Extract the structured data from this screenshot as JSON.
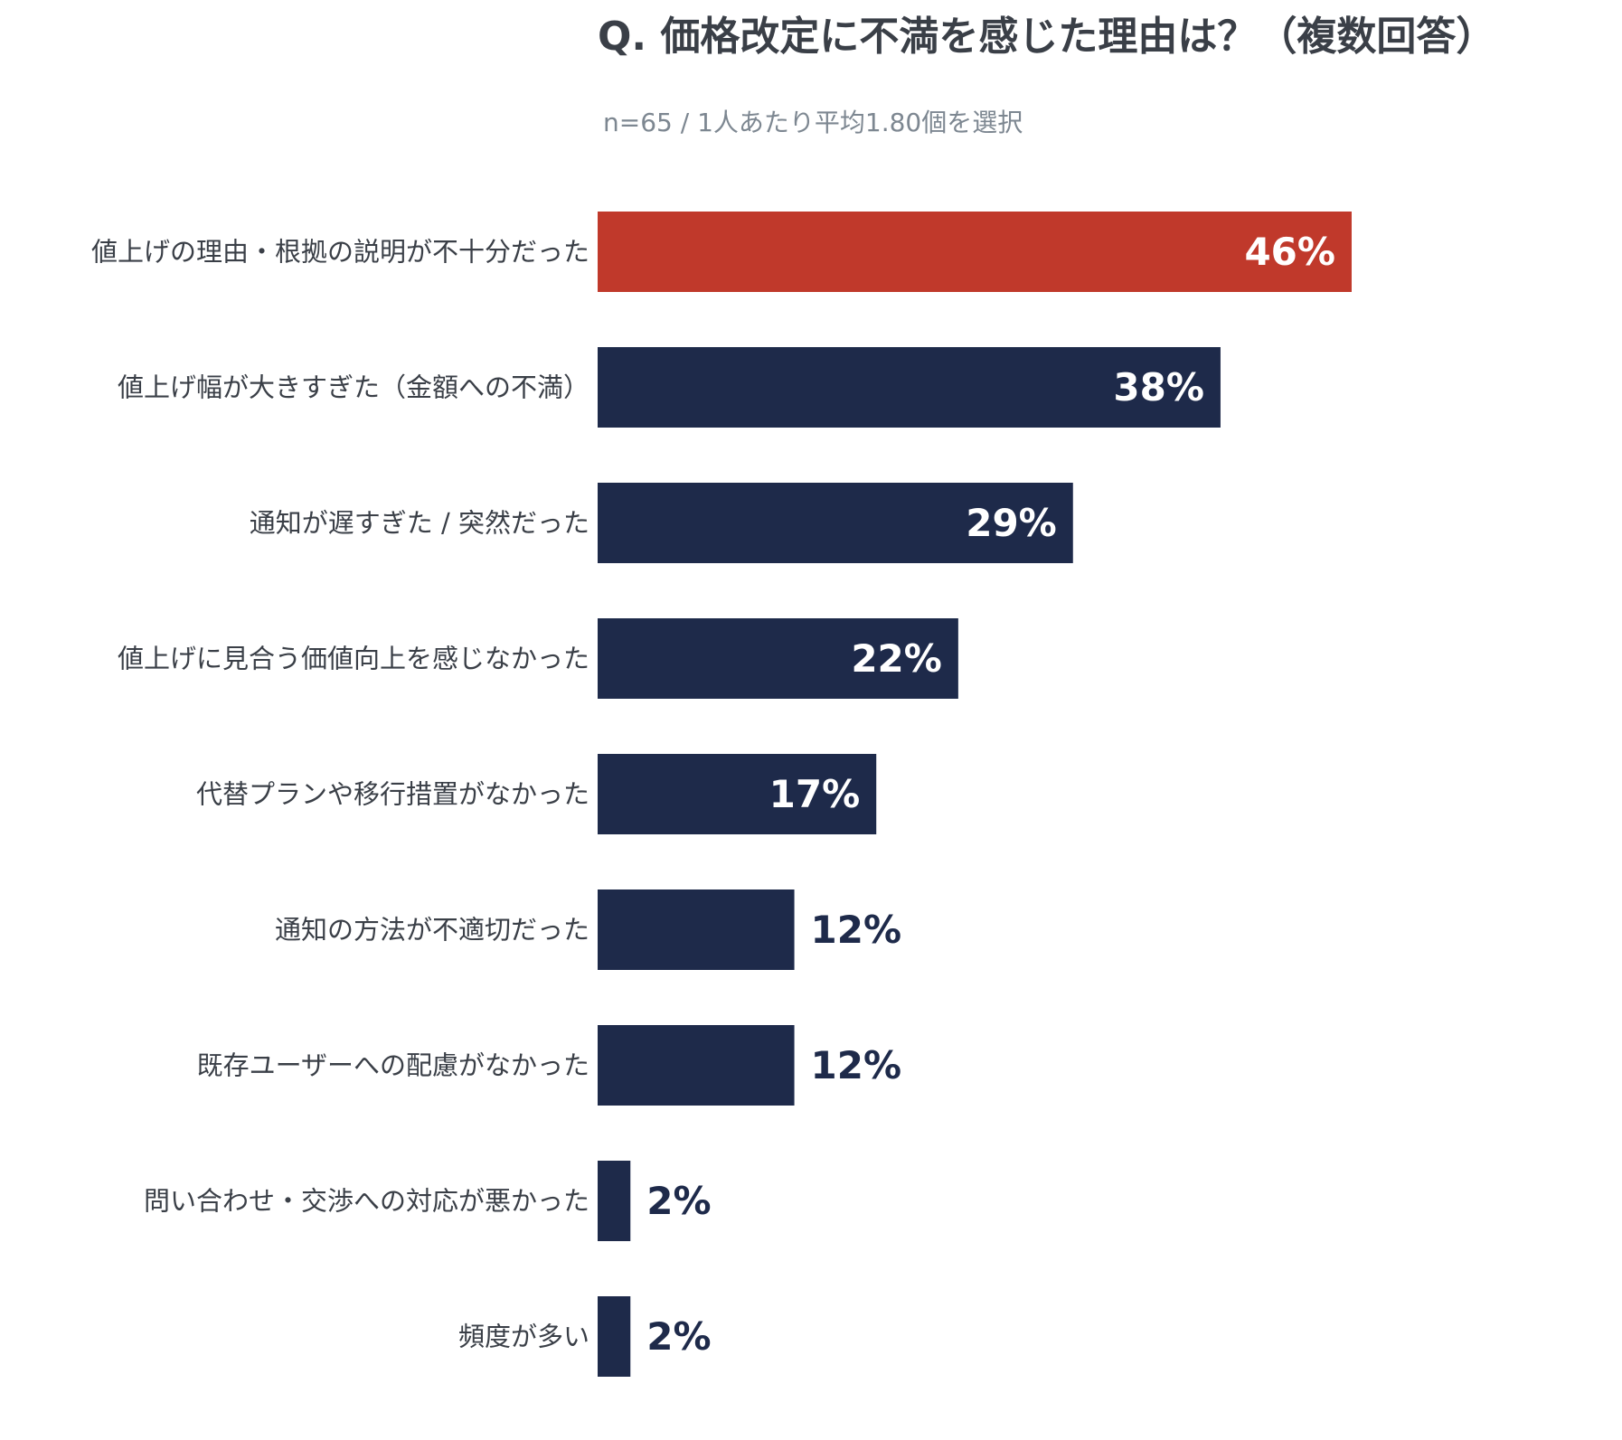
{
  "chart_data": {
    "type": "bar",
    "orientation": "horizontal",
    "title": "Q. 価格改定に不満を感じた理由は？（複数回答）",
    "subtitle": "n=65 / 1人あたり平均1.80個を選択",
    "categories": [
      "値上げの理由・根拠の説明が不十分だった",
      "値上げ幅が大きすぎた（金額への不満）",
      "通知が遅すぎた / 突然だった",
      "値上げに見合う価値向上を感じなかった",
      "代替プランや移行措置がなかった",
      "通知の方法が不適切だった",
      "既存ユーザーへの配慮がなかった",
      "問い合わせ・交渉への対応が悪かった",
      "頻度が多い"
    ],
    "values": [
      46,
      38,
      29,
      22,
      17,
      12,
      12,
      2,
      2
    ],
    "value_labels": [
      "46%",
      "38%",
      "29%",
      "22%",
      "17%",
      "12%",
      "12%",
      "2%",
      "2%"
    ],
    "unit": "%",
    "highlight_index": 0,
    "xlim": [
      0,
      60
    ],
    "grid": false,
    "legend": "none",
    "colors": {
      "highlight": "#c0392b",
      "bar": "#1e2a4a",
      "label_inside": "#ffffff",
      "label_outside": "#1e2a4a",
      "category_text": "#3a3f47",
      "title": "#3a3f47",
      "subtitle": "#7d8791"
    }
  }
}
